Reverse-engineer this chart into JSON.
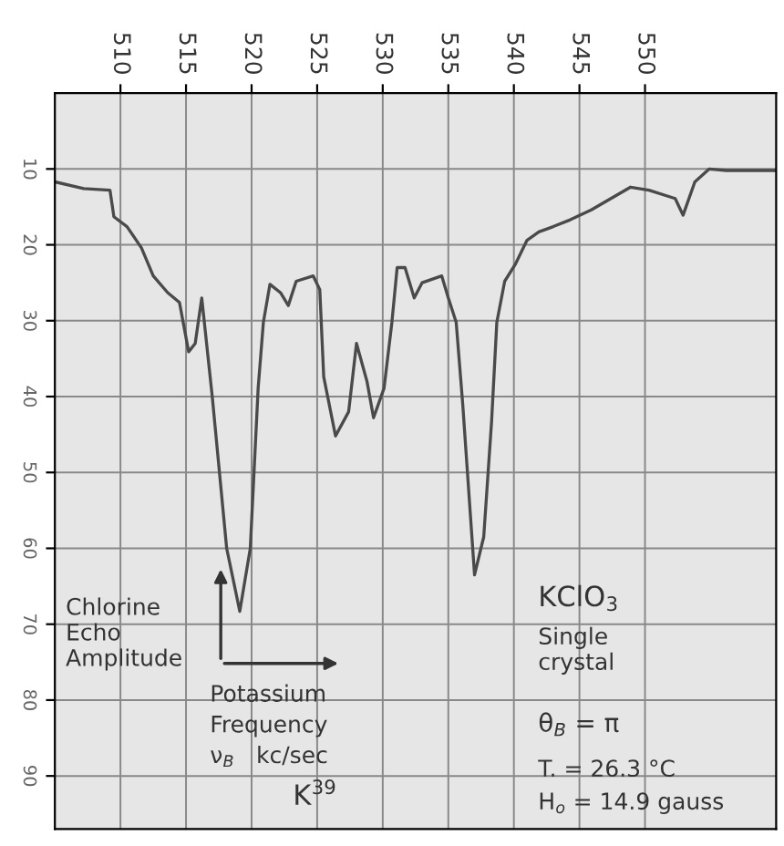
{
  "chart_data": {
    "type": "line",
    "xlabel": "Potassium\nFrequency\nν$_{B}$   kc/sec",
    "ylabel": "Chlorine\nEcho\nAmplitude",
    "annotations": [
      "K$^{39}$",
      "KClO$_{3}$",
      "Single\ncrystal",
      "θ$_{B}$ = π",
      "T. = 26.3 °C",
      "H$_{o}$ = 14.9 gauss"
    ],
    "series": [
      {
        "color": "#4a4a4a",
        "x": [
          505.0,
          507.2,
          509.2,
          509.5,
          510.5,
          511.6,
          512.5,
          513.6,
          514.5,
          515.2,
          515.7,
          516.2,
          517.0,
          518.1,
          519.1,
          519.9,
          520.5,
          520.9,
          521.4,
          522.2,
          522.8,
          523.4,
          524.7,
          525.2,
          525.5,
          526.4,
          527.4,
          528.0,
          528.8,
          529.3,
          530.1,
          530.7,
          531.1,
          531.7,
          532.4,
          533.0,
          534.5,
          535.0,
          535.6,
          536.1,
          537.0,
          537.7,
          538.3,
          538.7,
          539.3,
          540.1,
          541.0,
          541.9,
          543.0,
          544.3,
          545.9,
          547.4,
          548.9,
          550.3,
          552.3,
          552.9,
          553.8,
          554.9,
          556.2,
          559.9
        ],
        "values": [
          11.7,
          12.6,
          12.8,
          16.3,
          17.6,
          20.4,
          24.1,
          26.3,
          27.6,
          34.1,
          33,
          27,
          40,
          60,
          68.3,
          60,
          38.9,
          30.2,
          25.2,
          26.3,
          28,
          24.8,
          24.1,
          25.9,
          37.4,
          45.2,
          42,
          33,
          38,
          42.8,
          38.9,
          30.2,
          23.0,
          23.0,
          27,
          25,
          24.1,
          27,
          30.2,
          41,
          63.5,
          58.5,
          43.3,
          30.2,
          24.8,
          22.6,
          19.4,
          18.3,
          17.6,
          16.7,
          15.4,
          13.9,
          12.4,
          12.8,
          13.9,
          16.1,
          11.7,
          10.0,
          10.2,
          10.2
        ]
      }
    ],
    "xlim": [
      505,
      560
    ],
    "ylim": [
      97,
      0
    ],
    "xticks": [
      510,
      515,
      520,
      525,
      530,
      535,
      540,
      545,
      550
    ],
    "yticks": [
      10,
      20,
      30,
      40,
      50,
      60,
      70,
      80,
      90
    ],
    "grid": true,
    "marker": "none",
    "line_style": "solid"
  }
}
